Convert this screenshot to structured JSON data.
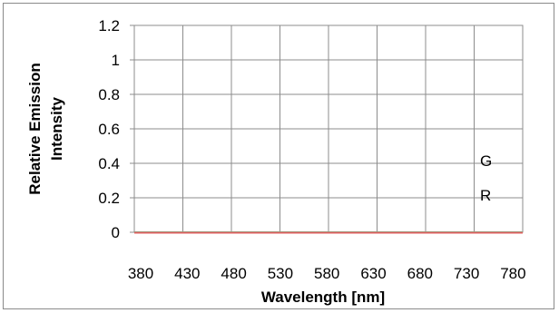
{
  "chart_data": {
    "type": "line",
    "xlabel": "Wavelength [nm]",
    "ylabel_lines": [
      "Relative Emission",
      "Intensity"
    ],
    "x_tick_labels": [
      "380",
      "430",
      "480",
      "530",
      "580",
      "630",
      "680",
      "730",
      "780"
    ],
    "y_tick_labels": [
      "0",
      "0.2",
      "0.4",
      "0.6",
      "0.8",
      "1",
      "1.2"
    ],
    "ylim": [
      0,
      1.2
    ],
    "grid": true,
    "legend_position": "right",
    "legend_entries": [
      "G",
      "R"
    ],
    "series": [
      {
        "name": "G",
        "color": "#66cc99",
        "x": [
          380,
          430,
          480,
          530,
          580,
          630,
          680,
          730,
          780,
          830
        ],
        "y": [
          0,
          0,
          0,
          0,
          0,
          0,
          0,
          0,
          0,
          0
        ]
      },
      {
        "name": "R",
        "color": "#e06060",
        "x": [
          380,
          430,
          480,
          530,
          580,
          630,
          680,
          730,
          780,
          830
        ],
        "y": [
          0,
          0,
          0,
          0,
          0,
          0,
          0,
          0,
          0,
          0
        ]
      }
    ]
  }
}
